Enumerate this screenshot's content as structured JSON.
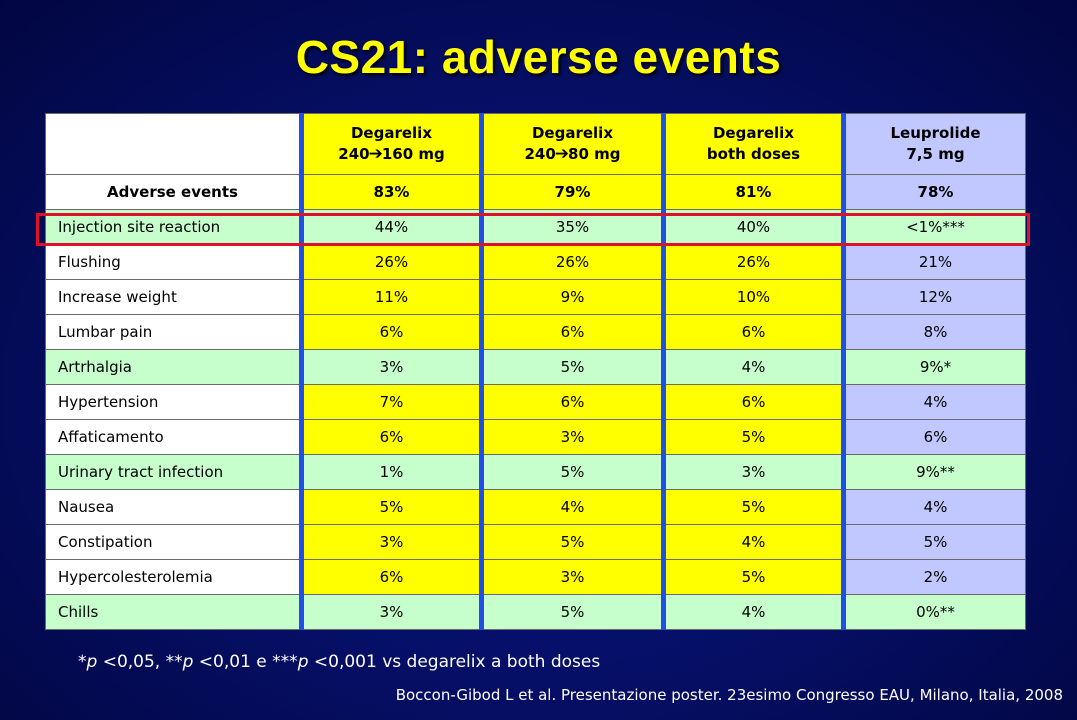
{
  "title": "CS21: adverse events",
  "table": {
    "headers": [
      {
        "line1": "Degarelix",
        "line2_pre": "240",
        "arrow": "➔",
        "line2_post": "160 mg"
      },
      {
        "line1": "Degarelix",
        "line2_pre": "240",
        "arrow": "➔",
        "line2_post": "80 mg"
      },
      {
        "line1": "Degarelix",
        "line2": "both doses"
      },
      {
        "line1": "Leuprolide",
        "line2": "7,5 mg"
      }
    ],
    "rows": [
      {
        "label": "Adverse events",
        "values": [
          "83%",
          "79%",
          "81%",
          "78%"
        ]
      },
      {
        "label": "Injection site reaction",
        "values": [
          "44%",
          "35%",
          "40%",
          "<1%***"
        ]
      },
      {
        "label": "Flushing",
        "values": [
          "26%",
          "26%",
          "26%",
          "21%"
        ]
      },
      {
        "label": "Increase weight",
        "values": [
          "11%",
          "9%",
          "10%",
          "12%"
        ]
      },
      {
        "label": "Lumbar pain",
        "values": [
          "6%",
          "6%",
          "6%",
          "8%"
        ]
      },
      {
        "label": "Artrhalgia",
        "values": [
          "3%",
          "5%",
          "4%",
          "9%*"
        ]
      },
      {
        "label": "Hypertension",
        "values": [
          "7%",
          "6%",
          "6%",
          "4%"
        ]
      },
      {
        "label": "Affaticamento",
        "values": [
          "6%",
          "3%",
          "5%",
          "6%"
        ]
      },
      {
        "label": "Urinary tract infection",
        "values": [
          "1%",
          "5%",
          "3%",
          "9%**"
        ]
      },
      {
        "label": "Nausea",
        "values": [
          "5%",
          "4%",
          "5%",
          "4%"
        ]
      },
      {
        "label": "Constipation",
        "values": [
          "3%",
          "5%",
          "4%",
          "5%"
        ]
      },
      {
        "label": "Hypercolesterolemia",
        "values": [
          "6%",
          "3%",
          "5%",
          "2%"
        ]
      },
      {
        "label": "Chills",
        "values": [
          "3%",
          "5%",
          "4%",
          "0%**"
        ]
      }
    ]
  },
  "footnote": {
    "p1": "p",
    "t1": " <0,05, **",
    "p2": "p",
    "t2": " <0,01 e ***",
    "p3": "p",
    "t3": " <0,001 vs degarelix a both doses",
    "lead": "*"
  },
  "source": "Boccon-Gibod L et al. Presentazione poster. 23esimo Congresso EAU, Milano, Italia, 2008",
  "colors": {
    "title": "#ffff00",
    "degarelix_cell": "#ffff00",
    "leuprolide_cell": "#c0c8ff",
    "green_row": "#c6ffcc",
    "highlight_box": "#e0102a",
    "column_separator": "#1f4fe6"
  }
}
